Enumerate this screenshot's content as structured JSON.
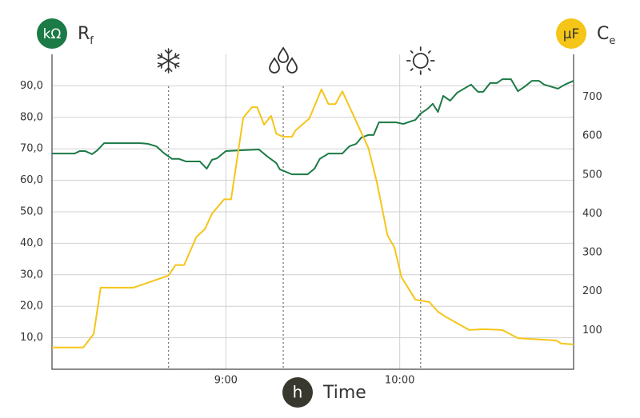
{
  "chart_data": {
    "type": "line",
    "y_unit": "kΩ",
    "y_label": "R",
    "y_label_sub": "f",
    "y2_unit": "μF",
    "y2_label": "C",
    "y2_label_sub": "e",
    "x_unit": "h",
    "x_label": "Time",
    "xlim": [
      8,
      11
    ],
    "xticks": [
      {
        "value": 9,
        "label": "9:00"
      },
      {
        "value": 10,
        "label": "10:00"
      }
    ],
    "ylim": [
      0,
      100
    ],
    "yticks": [
      {
        "value": 10,
        "label": "10,0"
      },
      {
        "value": 20,
        "label": "20,0"
      },
      {
        "value": 30,
        "label": "30,0"
      },
      {
        "value": 40,
        "label": "40,0"
      },
      {
        "value": 50,
        "label": "50,0"
      },
      {
        "value": 60,
        "label": "60,0"
      },
      {
        "value": 70,
        "label": "70,0"
      },
      {
        "value": 80,
        "label": "80,0"
      },
      {
        "value": 90,
        "label": "90,0"
      }
    ],
    "y2lim": [
      0,
      810
    ],
    "y2ticks": [
      100,
      200,
      300,
      400,
      500,
      600,
      700
    ],
    "grid": true,
    "markers": [
      8.67,
      9.33,
      10.12
    ],
    "series": [
      {
        "color": "#1b7a45",
        "axis": "y",
        "x": [
          8.0,
          8.13,
          8.16,
          8.19,
          8.23,
          8.26,
          8.3,
          8.51,
          8.55,
          8.6,
          8.64,
          8.69,
          8.73,
          8.77,
          8.85,
          8.89,
          8.92,
          8.95,
          9.0,
          9.08,
          9.19,
          9.24,
          9.29,
          9.31,
          9.38,
          9.47,
          9.51,
          9.54,
          9.59,
          9.67,
          9.71,
          9.75,
          9.78,
          9.82,
          9.85,
          9.88,
          9.98,
          10.02,
          10.09,
          10.12,
          10.16,
          10.19,
          10.22,
          10.25,
          10.29,
          10.33,
          10.41,
          10.45,
          10.48,
          10.52,
          10.56,
          10.59,
          10.64,
          10.68,
          10.72,
          10.76,
          10.8,
          10.83,
          10.91,
          10.95,
          11.0
        ],
        "values": [
          68.5,
          68.5,
          69.3,
          69.3,
          68.3,
          69.5,
          71.8,
          71.8,
          71.6,
          70.8,
          68.8,
          66.8,
          66.8,
          66.0,
          66.0,
          63.7,
          66.5,
          67.0,
          69.3,
          69.5,
          69.8,
          67.5,
          65.5,
          63.5,
          61.9,
          61.9,
          63.7,
          66.8,
          68.5,
          68.5,
          70.8,
          71.6,
          73.6,
          74.4,
          74.4,
          78.4,
          78.4,
          77.9,
          79.2,
          81.2,
          82.7,
          84.3,
          81.7,
          86.8,
          85.3,
          87.8,
          90.4,
          88.1,
          88.1,
          90.9,
          90.9,
          92.1,
          92.1,
          88.3,
          89.8,
          91.6,
          91.6,
          90.4,
          89.1,
          90.4,
          91.6
        ]
      },
      {
        "color": "#f5c518",
        "axis": "y2",
        "x": [
          8.0,
          8.18,
          8.24,
          8.28,
          8.47,
          8.67,
          8.71,
          8.76,
          8.83,
          8.88,
          8.92,
          8.99,
          9.03,
          9.1,
          9.15,
          9.18,
          9.22,
          9.26,
          9.29,
          9.33,
          9.38,
          9.4,
          9.48,
          9.55,
          9.59,
          9.63,
          9.67,
          9.82,
          9.87,
          9.93,
          9.97,
          10.01,
          10.09,
          10.17,
          10.22,
          10.26,
          10.4,
          10.48,
          10.59,
          10.68,
          10.9,
          10.93,
          11.0
        ],
        "values": [
          56,
          56,
          91,
          210,
          210,
          241,
          268,
          268,
          340,
          361,
          400,
          437,
          437,
          647,
          674,
          674,
          629,
          652,
          606,
          598,
          598,
          614,
          645,
          720,
          682,
          682,
          715,
          569,
          478,
          344,
          313,
          237,
          179,
          173,
          148,
          136,
          101,
          103,
          101,
          80,
          74,
          66,
          64
        ]
      }
    ]
  }
}
